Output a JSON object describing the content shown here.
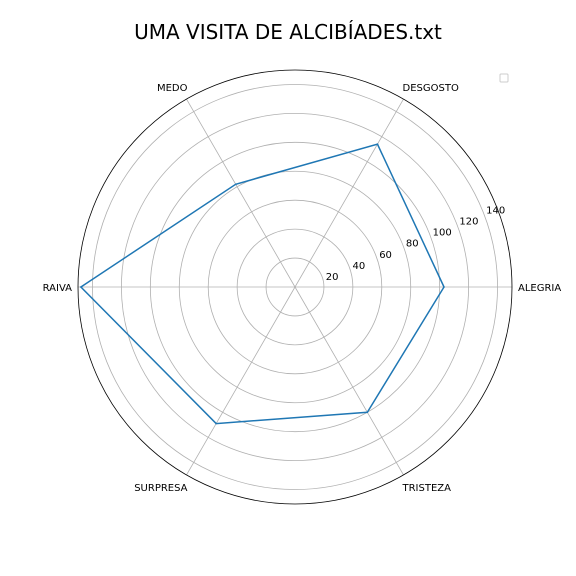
{
  "chart_data": {
    "type": "radar",
    "title": "UMA VISITA DE ALCIBÍADES.txt",
    "categories": [
      "ALEGRIA",
      "DESGOSTO",
      "MEDO",
      "RAIVA",
      "SURPRESA",
      "TRISTEZA"
    ],
    "series": [
      {
        "values": [
          103,
          114,
          82,
          148,
          109,
          100
        ],
        "color": "#1f77b4"
      }
    ],
    "radial_ticks": [
      20,
      40,
      60,
      80,
      100,
      120,
      140
    ],
    "rlim": [
      0,
      150
    ],
    "grid": true,
    "legend": "top-right"
  }
}
